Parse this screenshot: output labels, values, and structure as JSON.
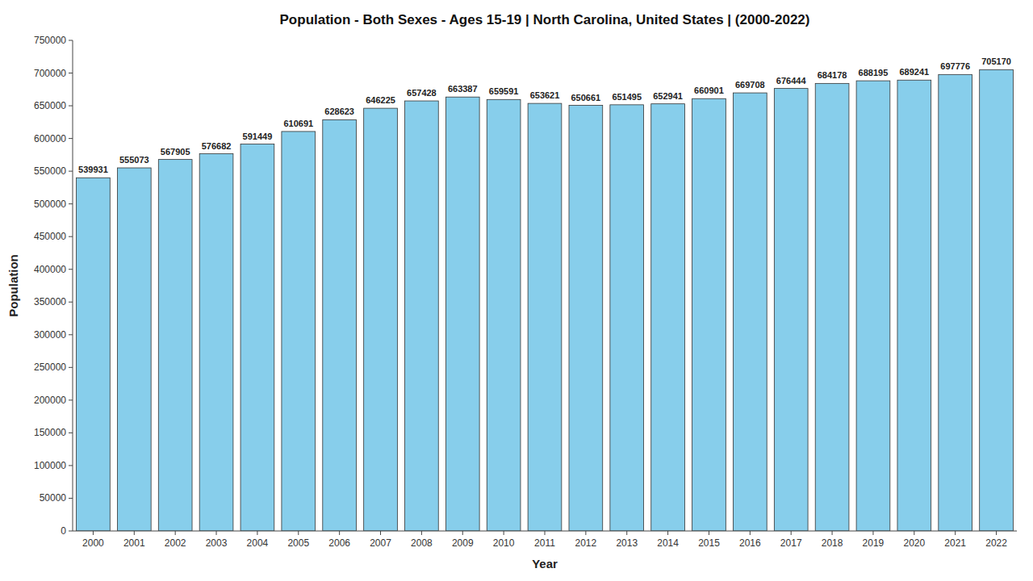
{
  "chart_data": {
    "type": "bar",
    "title": "Population - Both Sexes - Ages 15-19 | North Carolina, United States |  (2000-2022)",
    "xlabel": "Year",
    "ylabel": "Population",
    "categories": [
      "2000",
      "2001",
      "2002",
      "2003",
      "2004",
      "2005",
      "2006",
      "2007",
      "2008",
      "2009",
      "2010",
      "2011",
      "2012",
      "2013",
      "2014",
      "2015",
      "2016",
      "2017",
      "2018",
      "2019",
      "2020",
      "2021",
      "2022"
    ],
    "values": [
      539931,
      555073,
      567905,
      576682,
      591449,
      610691,
      628623,
      646225,
      657428,
      663387,
      659591,
      653621,
      650661,
      651495,
      652941,
      660901,
      669708,
      676444,
      684178,
      688195,
      689241,
      697776,
      705170
    ],
    "color": "#87CEEB",
    "ylim": [
      0,
      750000
    ],
    "yticks": [
      0,
      50000,
      100000,
      150000,
      200000,
      250000,
      300000,
      350000,
      400000,
      450000,
      500000,
      550000,
      600000,
      650000,
      700000,
      750000
    ],
    "data_labels": true,
    "grid": false
  }
}
